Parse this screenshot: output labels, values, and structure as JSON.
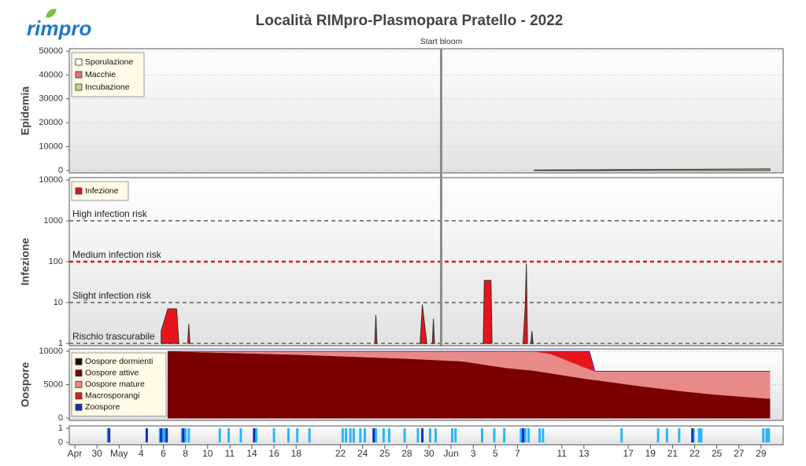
{
  "logo": "rimpro",
  "title": "Località RIMpro-Plasmopara  Pratello - 2022",
  "marker": {
    "label": "Start bloom",
    "x": 33.1
  },
  "chart_data": [
    {
      "type": "area",
      "ylabel": "Epidemia",
      "xlim": [
        -0.5,
        64
      ],
      "ylim": [
        0,
        50000
      ],
      "yticks": [
        0,
        10000,
        20000,
        30000,
        40000,
        50000
      ],
      "grid": true,
      "edge_color": "#333333",
      "x": [
        41.5,
        62.8
      ],
      "series": [
        {
          "name": "Sporulazione",
          "color": "#ffffff",
          "values": [
            0,
            0
          ]
        },
        {
          "name": "Macchie",
          "color": "#e87070",
          "values": [
            0,
            0
          ]
        },
        {
          "name": "Incubazione",
          "color": "#b8d98a",
          "values": [
            200,
            700
          ]
        }
      ]
    },
    {
      "type": "area",
      "ylabel": "Infezione",
      "log": true,
      "xlim": [
        -0.5,
        64
      ],
      "ylim": [
        1,
        10000
      ],
      "yticks": [
        1,
        10,
        100,
        1000,
        10000
      ],
      "grid": false,
      "edge_color": "#333333",
      "reference_lines": [
        {
          "label": "High infection risk",
          "value": 1000,
          "color": "#808080"
        },
        {
          "label": "Medium infection risk",
          "value": 100,
          "color": "#e8141c"
        },
        {
          "label": "Slight infection risk",
          "value": 10,
          "color": "#808080"
        },
        {
          "label": "Rischio trascurabile",
          "value": 1,
          "color": "#808080"
        }
      ],
      "x": [
        7.8,
        8.4,
        9.2,
        9.4,
        null,
        10.2,
        10.3,
        10.4,
        null,
        27.1,
        27.2,
        27.3,
        null,
        31.2,
        31.4,
        31.8,
        null,
        32.3,
        32.4,
        32.5,
        null,
        36.9,
        37.0,
        37.6,
        37.7,
        null,
        40.5,
        40.7,
        40.8,
        40.9,
        null,
        41.2,
        41.3,
        41.4
      ],
      "series": [
        {
          "name": "Infezione",
          "color": "#e8141c",
          "values": [
            2,
            7,
            7,
            1,
            null,
            1,
            3,
            1,
            null,
            1,
            5,
            1,
            null,
            1,
            9,
            1,
            null,
            1,
            4,
            1,
            null,
            1,
            35,
            35,
            1,
            null,
            1,
            9,
            90,
            1,
            null,
            1,
            2,
            1
          ]
        }
      ]
    },
    {
      "type": "stacked_area",
      "ylabel": "Oospore",
      "xlim": [
        -0.5,
        64
      ],
      "ylim": [
        0,
        10000
      ],
      "yticks": [
        0,
        5000,
        10000
      ],
      "grid": true,
      "x": [
        8.4,
        20,
        30,
        35,
        39,
        41.5,
        43,
        46.5,
        47,
        51,
        55,
        58,
        62.8
      ],
      "series": [
        {
          "name": "Oospore dormienti",
          "color": "#2a0a0a",
          "values": [
            0,
            0,
            0,
            0,
            0,
            0,
            0,
            0,
            0,
            0,
            0,
            0,
            0
          ]
        },
        {
          "name": "Oospore attive",
          "color": "#7b0000",
          "values": [
            10000,
            9500,
            8900,
            8500,
            7500,
            7100,
            6700,
            5800,
            5700,
            4800,
            4000,
            3500,
            2900
          ]
        },
        {
          "name": "Oospore mature",
          "color": "#e88a8a",
          "values": [
            0,
            500,
            1100,
            1500,
            2500,
            2900,
            2900,
            1500,
            1300,
            2200,
            3000,
            3500,
            4100
          ]
        },
        {
          "name": "Macrosporangi",
          "color": "#e8141c",
          "values": [
            0,
            0,
            0,
            0,
            0,
            0,
            400,
            2700,
            0,
            0,
            0,
            0,
            0
          ]
        },
        {
          "name": "Zoospore",
          "color": "#1030c0",
          "values": [
            0,
            0,
            0,
            0,
            0,
            0,
            0,
            0,
            0,
            0,
            0,
            0,
            0
          ]
        }
      ]
    },
    {
      "type": "bar",
      "xlim": [
        -0.5,
        64
      ],
      "ylim": [
        0,
        1
      ],
      "yticks": [
        0,
        1
      ],
      "grid": false,
      "xticks": [
        {
          "value": 0,
          "label": "Apr"
        },
        {
          "value": 2,
          "label": "30"
        },
        {
          "value": 4,
          "label": "May"
        },
        {
          "value": 6,
          "label": "4"
        },
        {
          "value": 8,
          "label": "6"
        },
        {
          "value": 10,
          "label": "8"
        },
        {
          "value": 12,
          "label": "10"
        },
        {
          "value": 14,
          "label": "11"
        },
        {
          "value": 16,
          "label": "14"
        },
        {
          "value": 18,
          "label": "16"
        },
        {
          "value": 20,
          "label": "18"
        },
        {
          "value": 24,
          "label": "22"
        },
        {
          "value": 26,
          "label": "24"
        },
        {
          "value": 28,
          "label": "25"
        },
        {
          "value": 30,
          "label": "28"
        },
        {
          "value": 32,
          "label": "30"
        },
        {
          "value": 34,
          "label": "Jun"
        },
        {
          "value": 36,
          "label": "3"
        },
        {
          "value": 38,
          "label": "5"
        },
        {
          "value": 40,
          "label": "7"
        },
        {
          "value": 44,
          "label": "11"
        },
        {
          "value": 46,
          "label": "13"
        },
        {
          "value": 50,
          "label": "17"
        },
        {
          "value": 52,
          "label": "19"
        },
        {
          "value": 54,
          "label": "21"
        },
        {
          "value": 56,
          "label": "22"
        },
        {
          "value": 58,
          "label": "25"
        },
        {
          "value": 60,
          "label": "27"
        },
        {
          "value": 62,
          "label": "29"
        }
      ],
      "series": [
        {
          "color": "#29b6f6",
          "x": [
            3.0,
            7.7,
            8.0,
            8.2,
            9.7,
            10.0,
            10.3,
            13.1,
            13.9,
            15.0,
            16.4,
            18.0,
            19.3,
            20.1,
            21.2,
            24.2,
            24.5,
            24.9,
            25.2,
            25.8,
            26.2,
            27.2,
            27.9,
            28.4,
            29.8,
            31.0,
            32.1,
            32.6,
            34.1,
            34.4,
            36.8,
            37.9,
            38.8,
            40.3,
            40.7,
            41.0,
            42.0,
            42.3,
            49.4,
            52.7,
            53.5,
            54.6,
            55.9,
            56.4,
            56.6,
            62.2,
            62.5,
            62.7
          ],
          "values": [
            1,
            1,
            1,
            1,
            1,
            1,
            1,
            1,
            1,
            1,
            1,
            1,
            1,
            1,
            1,
            1,
            1,
            1,
            1,
            1,
            1,
            1,
            1,
            1,
            1,
            1,
            1,
            1,
            1,
            1,
            1,
            1,
            1,
            1,
            1,
            1,
            1,
            1,
            1,
            1,
            1,
            1,
            1,
            1,
            1,
            1,
            1,
            1
          ]
        },
        {
          "color": "#1030c0",
          "x": [
            3.1,
            6.5,
            7.8,
            8.3,
            9.8,
            16.2,
            27.0,
            31.4,
            40.5,
            55.8
          ],
          "values": [
            1,
            1,
            1,
            1,
            1,
            1,
            1,
            1,
            1,
            1
          ]
        }
      ]
    }
  ]
}
